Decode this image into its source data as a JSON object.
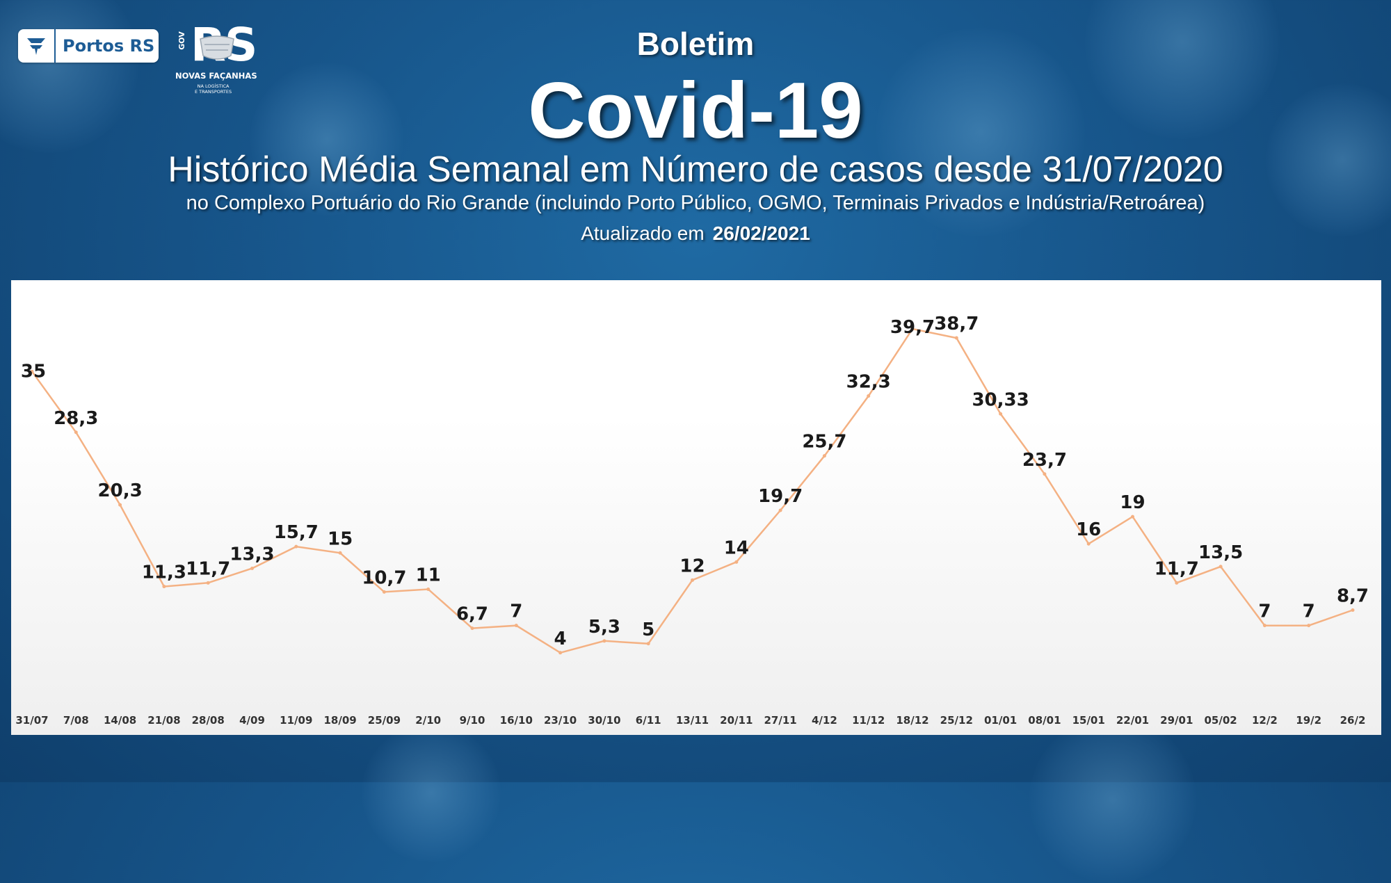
{
  "header": {
    "boletim": "Boletim",
    "covid": "Covid-19",
    "historico": "Histórico Média Semanal em Número de casos desde 31/07/2020",
    "subtitle": "no Complexo Portuário do Rio Grande (incluindo Porto Público, OGMO, Terminais Privados e Indústria/Retroárea)",
    "updated_label": "Atualizado em",
    "updated_date": "26/02/2021"
  },
  "logos": {
    "portos_name": "Portos RS",
    "rs_gov": "GOV",
    "rs_word": "RS",
    "rs_slogan": "NOVAS FAÇANHAS",
    "rs_sub1": "NA LOGÍSTICA",
    "rs_sub2": "E TRANSPORTES"
  },
  "colors": {
    "line": "#f4b183",
    "label": "#1a1a1a",
    "background": "#17558a"
  },
  "chart_data": {
    "type": "line",
    "categories": [
      "31/07",
      "7/08",
      "14/08",
      "21/08",
      "28/08",
      "4/09",
      "11/09",
      "18/09",
      "25/09",
      "2/10",
      "9/10",
      "16/10",
      "23/10",
      "30/10",
      "6/11",
      "13/11",
      "20/11",
      "27/11",
      "4/12",
      "11/12",
      "18/12",
      "25/12",
      "01/01",
      "08/01",
      "15/01",
      "22/01",
      "29/01",
      "05/02",
      "12/2",
      "19/2",
      "26/2"
    ],
    "values": [
      35,
      28.3,
      20.3,
      11.3,
      11.7,
      13.3,
      15.7,
      15,
      10.7,
      11,
      6.7,
      7,
      4,
      5.3,
      5,
      12,
      14,
      19.7,
      25.7,
      32.3,
      39.7,
      38.7,
      30.33,
      23.7,
      16,
      19,
      11.7,
      13.5,
      7,
      7,
      8.7
    ],
    "labels": [
      "35",
      "28,3",
      "20,3",
      "11,3",
      "11,7",
      "13,3",
      "15,7",
      "15",
      "10,7",
      "11",
      "6,7",
      "7",
      "4",
      "5,3",
      "5",
      "12",
      "14",
      "19,7",
      "25,7",
      "32,3",
      "39,7",
      "38,7",
      "30,33",
      "23,7",
      "16",
      "19",
      "11,7",
      "13,5",
      "7",
      "7",
      "8,7"
    ],
    "ylim": [
      0,
      42
    ],
    "grid": false,
    "legend": "none"
  }
}
